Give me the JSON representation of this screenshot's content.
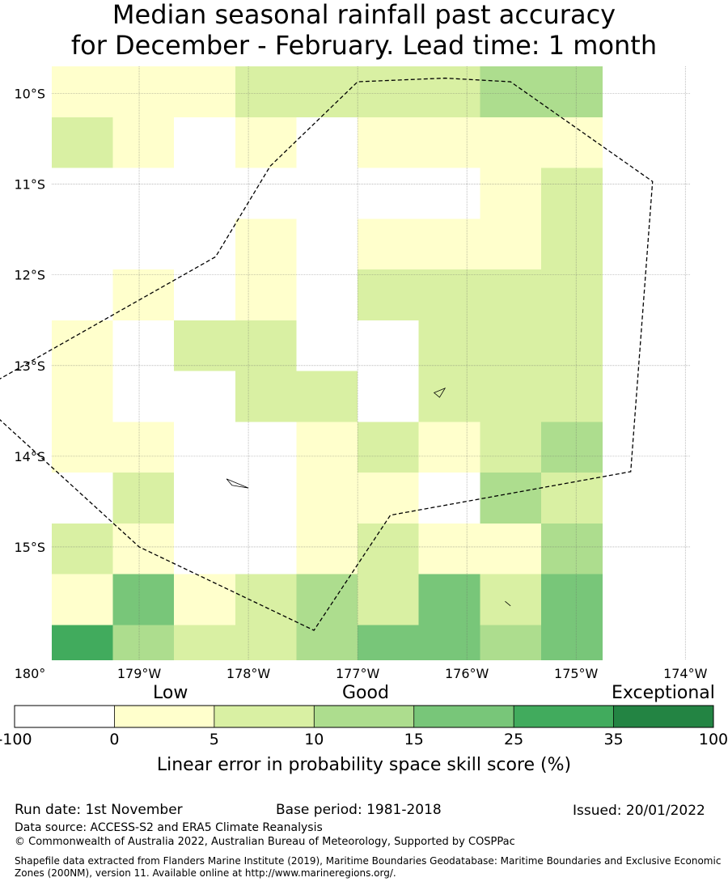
{
  "title": {
    "line1": "Median seasonal rainfall past accuracy",
    "line2": "for December - February. Lead time: 1 month"
  },
  "map": {
    "lon_min": -179.8,
    "lon_max": -173.95,
    "lat_top": -9.7,
    "lat_bottom": -16.25,
    "cell_size_deg": 0.56,
    "lon_ticks": [
      {
        "value": -180,
        "label": "180°"
      },
      {
        "value": -179,
        "label": "179°W"
      },
      {
        "value": -178,
        "label": "178°W"
      },
      {
        "value": -177,
        "label": "177°W"
      },
      {
        "value": -176,
        "label": "176°W"
      },
      {
        "value": -175,
        "label": "175°W"
      },
      {
        "value": -174,
        "label": "174°W"
      }
    ],
    "lat_ticks": [
      {
        "value": -10,
        "label": "10°S"
      },
      {
        "value": -11,
        "label": "11°S"
      },
      {
        "value": -12,
        "label": "12°S"
      },
      {
        "value": -13,
        "label": "13°S"
      },
      {
        "value": -14,
        "label": "14°S"
      },
      {
        "value": -15,
        "label": "15°S"
      }
    ],
    "grid_categories": [
      [
        1,
        1,
        1,
        2,
        2,
        2,
        2,
        3,
        3
      ],
      [
        2,
        1,
        0,
        1,
        0,
        1,
        1,
        1,
        1
      ],
      [
        0,
        0,
        0,
        0,
        0,
        0,
        0,
        1,
        2
      ],
      [
        0,
        0,
        0,
        1,
        0,
        1,
        1,
        1,
        2
      ],
      [
        0,
        1,
        0,
        1,
        0,
        2,
        2,
        2,
        2
      ],
      [
        1,
        0,
        2,
        2,
        0,
        0,
        2,
        2,
        2
      ],
      [
        1,
        0,
        0,
        2,
        2,
        0,
        2,
        2,
        2
      ],
      [
        1,
        1,
        0,
        0,
        1,
        2,
        1,
        2,
        3
      ],
      [
        0,
        2,
        0,
        0,
        1,
        1,
        0,
        3,
        2
      ],
      [
        2,
        1,
        0,
        0,
        1,
        2,
        1,
        1,
        3
      ],
      [
        1,
        4,
        1,
        2,
        3,
        2,
        4,
        2,
        4
      ],
      [
        5,
        3,
        2,
        2,
        3,
        4,
        4,
        3,
        4
      ]
    ],
    "boundary_path": [
      [
        -180.5,
        -13.3
      ],
      [
        -178.3,
        -11.8
      ],
      [
        -177.8,
        -10.8
      ],
      [
        -177.0,
        -9.87
      ],
      [
        -176.2,
        -9.83
      ],
      [
        -175.6,
        -9.87
      ],
      [
        -174.3,
        -10.97
      ],
      [
        -174.5,
        -14.17
      ],
      [
        -176.7,
        -14.65
      ],
      [
        -177.4,
        -15.92
      ],
      [
        -179.0,
        -15.0
      ],
      [
        -180.5,
        -13.35
      ]
    ],
    "islands": [
      {
        "name": "island-upolu",
        "points": [
          [
            -178.2,
            -14.25
          ],
          [
            -178.0,
            -14.35
          ],
          [
            -178.15,
            -14.32
          ]
        ]
      },
      {
        "name": "island-tutuila",
        "points": [
          [
            -176.3,
            -13.3
          ],
          [
            -176.2,
            -13.25
          ],
          [
            -176.25,
            -13.35
          ]
        ]
      },
      {
        "name": "island-south",
        "points": [
          [
            -175.65,
            -15.6
          ],
          [
            -175.6,
            -15.65
          ]
        ]
      }
    ]
  },
  "colorbar": {
    "category_labels": [
      "Low",
      "Good",
      "Exceptional"
    ],
    "colors": [
      "#ffffff",
      "#ffffcc",
      "#d9f0a3",
      "#addd8e",
      "#78c679",
      "#41ab5d",
      "#238443"
    ],
    "tick_labels": [
      "-100",
      "0",
      "5",
      "10",
      "15",
      "25",
      "35",
      "100"
    ],
    "axis_label": "Linear error in probability space skill score (%)"
  },
  "footer": {
    "run_date": "Run date: 1st November",
    "base_period": "Base period: 1981-2018",
    "issued": "Issued: 20/01/2022",
    "data_source": "Data source: ACCESS-S2 and ERA5 Climate Reanalysis",
    "copyright": "© Commonwealth of Australia 2022, Australian Bureau of Meteorology, Supported by COSPPac",
    "shapefile_line1": "Shapefile data extracted from Flanders Marine Institute (2019), Maritime Boundaries Geodatabase: Maritime Boundaries and Exclusive Economic",
    "shapefile_line2": "Zones (200NM), version 11. Available online at http://www.marineregions.org/."
  }
}
